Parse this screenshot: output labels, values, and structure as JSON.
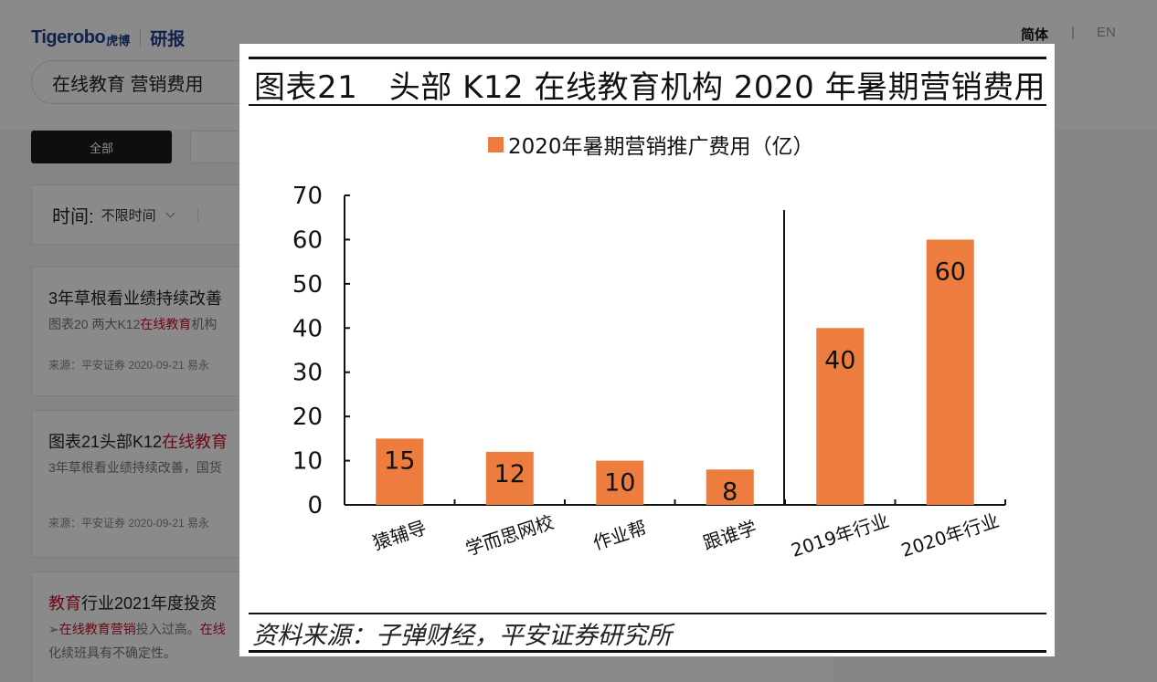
{
  "header": {
    "logo_text": "Tigerobo",
    "logo_cn": "虎博",
    "section": "研报",
    "lang_cn": "简体",
    "lang_sep": "|",
    "lang_en": "EN"
  },
  "search": {
    "value": "在线教育 营销费用"
  },
  "tabs": [
    {
      "label": "全部"
    }
  ],
  "filter": {
    "label": "时间:",
    "value": "不限时间"
  },
  "results": [
    {
      "title": "3年草根看业绩持续改善",
      "snippet_pre": "图表20 两大K12",
      "snippet_hl": "在线教育",
      "snippet_post": "机构",
      "meta": "来源：平安证券 2020-09-21   易永"
    },
    {
      "title_pre": "图表21头部K12",
      "title_hl": "在线教育",
      "snippet": "3年草根看业绩持续改善，国货",
      "meta": "来源：平安证券 2020-09-21   易永"
    },
    {
      "title_hl": "教育",
      "title_post": "行业2021年度投资",
      "snippet_prefix": "➢",
      "snippet_hl1": "在线教育营销",
      "snippet_mid": "投入过高。",
      "snippet_hl2": "在线",
      "snippet2": "化续班具有不确定性。"
    }
  ],
  "figure": {
    "title": "图表21　头部 K12 在线教育机构 2020 年暑期营销费用",
    "source": "资料来源：子弹财经，平安证券研究所"
  },
  "chart_data": {
    "type": "bar",
    "title": "图表21　头部 K12 在线教育机构 2020 年暑期营销费用",
    "categories": [
      "猿辅导",
      "学而思网校",
      "作业帮",
      "跟谁学",
      "2019年行业",
      "2020年行业"
    ],
    "series": [
      {
        "name": "2020年暑期营销推广费用（亿）",
        "values": [
          15,
          12,
          10,
          8,
          40,
          60
        ],
        "color": "#ed7d3f"
      }
    ],
    "ylim": [
      0,
      70
    ],
    "yticks": [
      0,
      10,
      20,
      30,
      40,
      50,
      60,
      70
    ],
    "xlabel": "",
    "ylabel": "",
    "legend": "top-center",
    "grid": false,
    "separator_after_category": 3,
    "data_labels": true
  }
}
